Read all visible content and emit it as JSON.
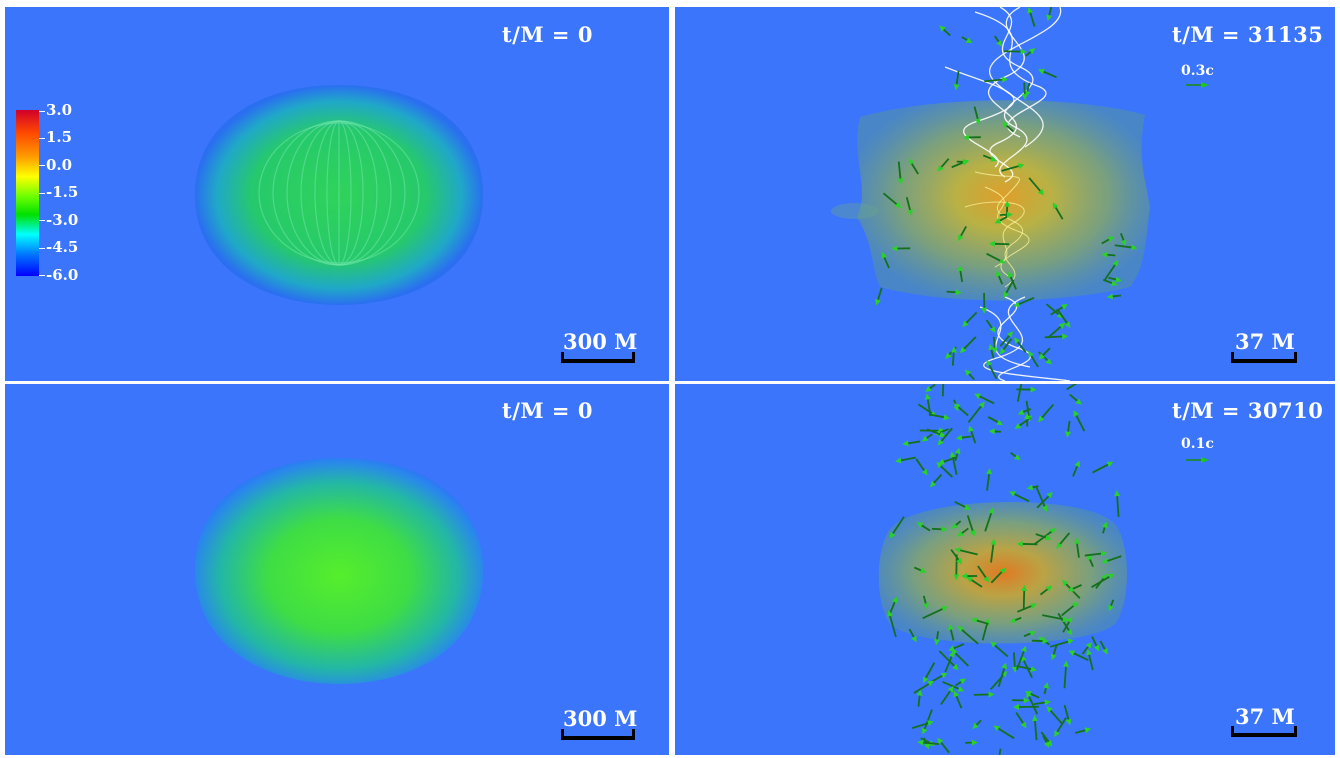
{
  "panels": [
    {
      "time_label": "t/M = 0",
      "scale_label": "300 M"
    },
    {
      "time_label": "t/M = 31135",
      "scale_label": "37 M",
      "velocity_label": "0.3c"
    },
    {
      "time_label": "t/M = 0",
      "scale_label": "300 M"
    },
    {
      "time_label": "t/M = 30710",
      "scale_label": "37 M",
      "velocity_label": "0.1c"
    }
  ],
  "colorbar": {
    "ticks": [
      "3.0",
      "1.5",
      "0.0",
      "-1.5",
      "-3.0",
      "-4.5",
      "-6.0"
    ],
    "colors": [
      "#d1002a",
      "#ff4a00",
      "#ff9a00",
      "#ffff00",
      "#6eff00",
      "#00e000",
      "#00ffff",
      "#0080ff",
      "#0000ff"
    ]
  },
  "colors": {
    "background": "#3a75fb",
    "text": "#ffffff",
    "scale_bar": "#000000",
    "arrow": "#22c422",
    "field_lines": "#ffffff"
  }
}
